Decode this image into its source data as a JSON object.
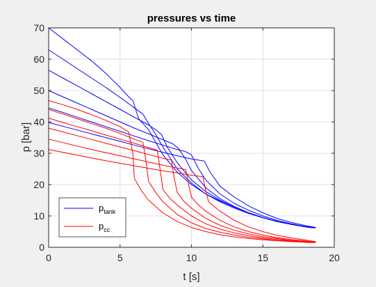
{
  "colors": {
    "figure_bg": "#f0f0f0",
    "axes_bg": "#ffffff",
    "grid": "#dfdfdf",
    "axis": "#262626",
    "tank": "#0000ff",
    "cc": "#ff0000"
  },
  "chart_data": {
    "type": "line",
    "title": "pressures vs time",
    "xlabel": "t [s]",
    "ylabel": "p [bar]",
    "xlim": [
      0,
      20
    ],
    "ylim": [
      0,
      70
    ],
    "xticks": [
      0,
      5,
      10,
      15,
      20
    ],
    "yticks": [
      0,
      10,
      20,
      30,
      40,
      50,
      60,
      70
    ],
    "grid": true,
    "legend": {
      "placement": "bottom-left",
      "entries": [
        {
          "base": "p",
          "sub": "tank",
          "color_key": "tank"
        },
        {
          "base": "p",
          "sub": "cc",
          "color_key": "cc"
        }
      ]
    },
    "series": [
      {
        "group": "tank",
        "points": [
          [
            0,
            70
          ],
          [
            1,
            66.5
          ],
          [
            2,
            63
          ],
          [
            3,
            59.5
          ],
          [
            4,
            55.5
          ],
          [
            5,
            51
          ],
          [
            5.6,
            48
          ],
          [
            5.9,
            46.8
          ],
          [
            6.3,
            41
          ],
          [
            7,
            37.5
          ],
          [
            7.5,
            33.5
          ],
          [
            8,
            29.5
          ],
          [
            9,
            24
          ],
          [
            10,
            20
          ],
          [
            11,
            17
          ],
          [
            12,
            14.8
          ],
          [
            13,
            12.8
          ],
          [
            14,
            11
          ],
          [
            15,
            9.5
          ],
          [
            16,
            8.2
          ],
          [
            17,
            7.3
          ],
          [
            18,
            6.5
          ],
          [
            18.3,
            6.3
          ]
        ]
      },
      {
        "group": "tank",
        "points": [
          [
            0,
            63
          ],
          [
            1,
            60
          ],
          [
            2,
            57
          ],
          [
            3,
            54
          ],
          [
            4,
            51
          ],
          [
            5,
            47.8
          ],
          [
            6,
            44.5
          ],
          [
            6.6,
            42.5
          ],
          [
            7,
            39.5
          ],
          [
            7.5,
            36
          ],
          [
            8,
            32
          ],
          [
            9,
            25
          ],
          [
            10,
            20.5
          ],
          [
            11,
            17
          ],
          [
            12,
            14.5
          ],
          [
            13,
            12.5
          ],
          [
            14,
            10.8
          ],
          [
            15,
            9.4
          ],
          [
            16,
            8.2
          ],
          [
            17,
            7.3
          ],
          [
            18,
            6.5
          ],
          [
            18.5,
            6.2
          ]
        ]
      },
      {
        "group": "tank",
        "points": [
          [
            0,
            56.5
          ],
          [
            1,
            54
          ],
          [
            2,
            51.5
          ],
          [
            3,
            49
          ],
          [
            4,
            46.5
          ],
          [
            5,
            44
          ],
          [
            6,
            41.5
          ],
          [
            7,
            39
          ],
          [
            7.5,
            37.5
          ],
          [
            7.9,
            36
          ],
          [
            8.3,
            32
          ],
          [
            9,
            27
          ],
          [
            10,
            21.5
          ],
          [
            11,
            17.8
          ],
          [
            12,
            15
          ],
          [
            13,
            12.8
          ],
          [
            14,
            11
          ],
          [
            15,
            9.5
          ],
          [
            16,
            8.3
          ],
          [
            17,
            7.3
          ],
          [
            18,
            6.6
          ],
          [
            18.6,
            6.2
          ]
        ]
      },
      {
        "group": "tank",
        "points": [
          [
            0,
            50
          ],
          [
            1,
            48
          ],
          [
            2,
            46
          ],
          [
            3,
            44
          ],
          [
            4,
            42
          ],
          [
            5,
            40
          ],
          [
            6,
            38
          ],
          [
            7,
            36.2
          ],
          [
            8,
            34.3
          ],
          [
            8.7,
            33
          ],
          [
            9.1,
            31.5
          ],
          [
            9.6,
            28
          ],
          [
            10,
            24.5
          ],
          [
            11,
            19
          ],
          [
            12,
            15.5
          ],
          [
            13,
            13
          ],
          [
            14,
            11
          ],
          [
            15,
            9.5
          ],
          [
            16,
            8.3
          ],
          [
            17,
            7.3
          ],
          [
            18,
            6.5
          ],
          [
            18.7,
            6.2
          ]
        ]
      },
      {
        "group": "tank",
        "points": [
          [
            0,
            44.5
          ],
          [
            1,
            43
          ],
          [
            2,
            41.5
          ],
          [
            3,
            40
          ],
          [
            4,
            38.5
          ],
          [
            5,
            37
          ],
          [
            6,
            35.5
          ],
          [
            7,
            34
          ],
          [
            8,
            32.6
          ],
          [
            9,
            31.2
          ],
          [
            9.6,
            30.5
          ],
          [
            10,
            29.5
          ],
          [
            10.5,
            25
          ],
          [
            11,
            21.5
          ],
          [
            12,
            17
          ],
          [
            13,
            14
          ],
          [
            14,
            11.8
          ],
          [
            15,
            10
          ],
          [
            16,
            8.6
          ],
          [
            17,
            7.5
          ],
          [
            18,
            6.6
          ],
          [
            18.7,
            6.2
          ]
        ]
      },
      {
        "group": "tank",
        "points": [
          [
            0,
            39.8
          ],
          [
            1,
            38.6
          ],
          [
            2,
            37.4
          ],
          [
            3,
            36.2
          ],
          [
            4,
            35
          ],
          [
            5,
            33.8
          ],
          [
            6,
            32.6
          ],
          [
            7,
            31.4
          ],
          [
            8,
            30.3
          ],
          [
            9,
            29.2
          ],
          [
            10,
            28.2
          ],
          [
            10.9,
            27.5
          ],
          [
            11.3,
            24
          ],
          [
            12,
            19.5
          ],
          [
            13,
            16
          ],
          [
            14,
            13.2
          ],
          [
            15,
            11
          ],
          [
            16,
            9.2
          ],
          [
            17,
            7.9
          ],
          [
            18,
            6.9
          ],
          [
            18.7,
            6.3
          ]
        ]
      },
      {
        "group": "cc",
        "points": [
          [
            0,
            46.8
          ],
          [
            1,
            45.5
          ],
          [
            2,
            44
          ],
          [
            3,
            42.3
          ],
          [
            4,
            40.5
          ],
          [
            5,
            38.5
          ],
          [
            5.6,
            36.8
          ],
          [
            5.9,
            30
          ],
          [
            6,
            22
          ],
          [
            6.5,
            18
          ],
          [
            7,
            15
          ],
          [
            8,
            11
          ],
          [
            9,
            8.2
          ],
          [
            10,
            6.3
          ],
          [
            11,
            5
          ],
          [
            12,
            4
          ],
          [
            13,
            3.3
          ],
          [
            14,
            2.8
          ],
          [
            15,
            2.4
          ],
          [
            16,
            2.1
          ],
          [
            17,
            1.8
          ],
          [
            18,
            1.6
          ],
          [
            18.3,
            1.5
          ]
        ]
      },
      {
        "group": "cc",
        "points": [
          [
            0,
            44
          ],
          [
            1,
            42.5
          ],
          [
            2,
            41
          ],
          [
            3,
            39.5
          ],
          [
            4,
            38
          ],
          [
            5,
            36.3
          ],
          [
            6,
            34.5
          ],
          [
            6.6,
            33.5
          ],
          [
            6.8,
            28
          ],
          [
            7,
            21
          ],
          [
            7.5,
            17.5
          ],
          [
            8,
            14.5
          ],
          [
            9,
            10.5
          ],
          [
            10,
            7.8
          ],
          [
            11,
            6
          ],
          [
            12,
            4.8
          ],
          [
            13,
            3.9
          ],
          [
            14,
            3.2
          ],
          [
            15,
            2.7
          ],
          [
            16,
            2.2
          ],
          [
            17,
            1.9
          ],
          [
            18,
            1.6
          ],
          [
            18.5,
            1.5
          ]
        ]
      },
      {
        "group": "cc",
        "points": [
          [
            0,
            41.2
          ],
          [
            1,
            39.8
          ],
          [
            2,
            38.5
          ],
          [
            3,
            37.2
          ],
          [
            4,
            35.8
          ],
          [
            5,
            34.5
          ],
          [
            6,
            33.2
          ],
          [
            7,
            31.8
          ],
          [
            7.6,
            31
          ],
          [
            7.8,
            25
          ],
          [
            8,
            18.5
          ],
          [
            8.5,
            15.5
          ],
          [
            9,
            13.5
          ],
          [
            10,
            10
          ],
          [
            11,
            7.5
          ],
          [
            12,
            5.8
          ],
          [
            13,
            4.6
          ],
          [
            14,
            3.7
          ],
          [
            15,
            3
          ],
          [
            16,
            2.5
          ],
          [
            17,
            2.1
          ],
          [
            18,
            1.7
          ],
          [
            18.6,
            1.5
          ]
        ]
      },
      {
        "group": "cc",
        "points": [
          [
            0,
            38
          ],
          [
            1,
            36.8
          ],
          [
            2,
            35.6
          ],
          [
            3,
            34.4
          ],
          [
            4,
            33.2
          ],
          [
            5,
            32
          ],
          [
            6,
            30.8
          ],
          [
            7,
            29.6
          ],
          [
            8,
            28.4
          ],
          [
            8.6,
            27.8
          ],
          [
            8.8,
            22
          ],
          [
            9,
            17.5
          ],
          [
            9.5,
            14.5
          ],
          [
            10,
            12.5
          ],
          [
            11,
            9.2
          ],
          [
            12,
            7
          ],
          [
            13,
            5.4
          ],
          [
            14,
            4.3
          ],
          [
            15,
            3.4
          ],
          [
            16,
            2.8
          ],
          [
            17,
            2.2
          ],
          [
            18,
            1.8
          ],
          [
            18.7,
            1.5
          ]
        ]
      },
      {
        "group": "cc",
        "points": [
          [
            0,
            34.5
          ],
          [
            1,
            33.4
          ],
          [
            2,
            32.3
          ],
          [
            3,
            31.2
          ],
          [
            4,
            30.2
          ],
          [
            5,
            29.2
          ],
          [
            6,
            28.2
          ],
          [
            7,
            27.2
          ],
          [
            8,
            26.2
          ],
          [
            9,
            25.3
          ],
          [
            9.6,
            24.8
          ],
          [
            9.8,
            20
          ],
          [
            10,
            16
          ],
          [
            10.5,
            13.5
          ],
          [
            11,
            11.5
          ],
          [
            12,
            8.6
          ],
          [
            13,
            6.5
          ],
          [
            14,
            5
          ],
          [
            15,
            3.9
          ],
          [
            16,
            3.1
          ],
          [
            17,
            2.5
          ],
          [
            18,
            2
          ],
          [
            18.7,
            1.6
          ]
        ]
      },
      {
        "group": "cc",
        "points": [
          [
            0,
            31.2
          ],
          [
            1,
            30.3
          ],
          [
            2,
            29.4
          ],
          [
            3,
            28.5
          ],
          [
            4,
            27.6
          ],
          [
            5,
            26.8
          ],
          [
            6,
            26
          ],
          [
            7,
            25.2
          ],
          [
            8,
            24.4
          ],
          [
            9,
            23.7
          ],
          [
            10,
            23
          ],
          [
            10.8,
            22.5
          ],
          [
            11,
            18
          ],
          [
            11.2,
            14.5
          ],
          [
            12,
            11.5
          ],
          [
            13,
            8.6
          ],
          [
            14,
            6.5
          ],
          [
            15,
            5
          ],
          [
            16,
            3.8
          ],
          [
            17,
            3
          ],
          [
            18,
            2.3
          ],
          [
            18.7,
            1.8
          ]
        ]
      }
    ]
  }
}
